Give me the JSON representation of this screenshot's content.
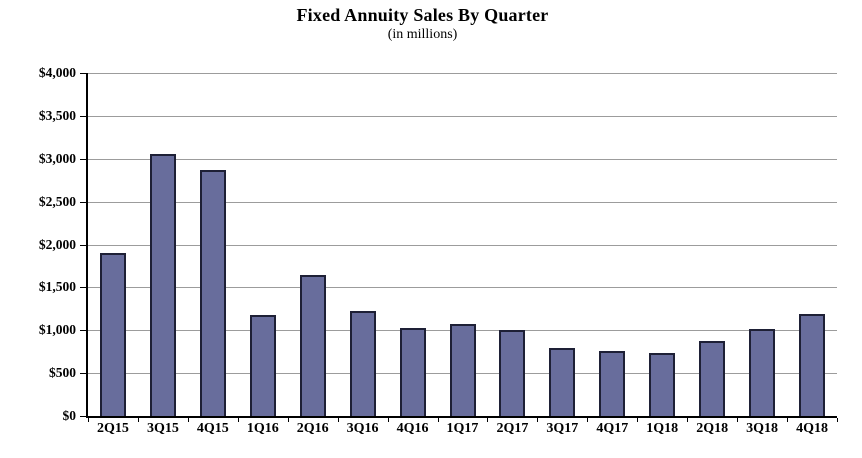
{
  "chart_data": {
    "type": "bar",
    "title": "Fixed Annuity Sales By Quarter",
    "subtitle": "(in millions)",
    "categories": [
      "2Q15",
      "3Q15",
      "4Q15",
      "1Q16",
      "2Q16",
      "3Q16",
      "4Q16",
      "1Q17",
      "2Q17",
      "3Q17",
      "4Q17",
      "1Q18",
      "2Q18",
      "3Q18",
      "4Q18"
    ],
    "values": [
      1905,
      3060,
      2870,
      1175,
      1645,
      1230,
      1030,
      1075,
      1000,
      790,
      755,
      730,
      875,
      1020,
      1185
    ],
    "xlabel": "",
    "ylabel": "",
    "ylim": [
      0,
      4000
    ],
    "ytick_step": 500,
    "y_tick_values": [
      0,
      500,
      1000,
      1500,
      2000,
      2500,
      3000,
      3500,
      4000
    ],
    "y_tick_labels": [
      "$0",
      "$500",
      "$1,000",
      "$1,500",
      "$2,000",
      "$2,500",
      "$3,000",
      "$3,500",
      "$4,000"
    ],
    "grid": "horizontal",
    "legend": "none",
    "colors": {
      "bar_fill": "#686D9C",
      "bar_border": "#1E2036",
      "gridline": "#9C9C9C",
      "axis": "#000000",
      "text": "#000000",
      "background": "#FFFFFF"
    }
  }
}
